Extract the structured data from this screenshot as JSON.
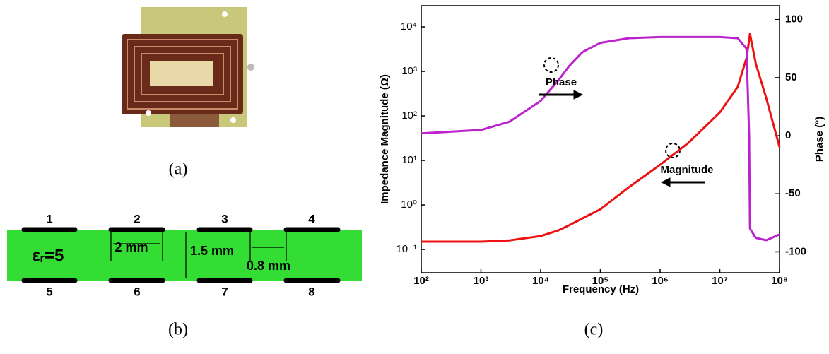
{
  "panel_a": {
    "caption": "(a)"
  },
  "panel_b": {
    "caption": "(b)",
    "top_labels": [
      "1",
      "2",
      "3",
      "4"
    ],
    "bottom_labels": [
      "5",
      "6",
      "7",
      "8"
    ],
    "permittivity": "εᵣ=5",
    "electrode_width": "2 mm",
    "thickness": "1.5 mm",
    "gap": "0.8 mm"
  },
  "panel_c": {
    "caption": "(c)"
  },
  "chart_data": {
    "type": "line",
    "x_label": "Frequency (Hz)",
    "y_label": "Impedance Magnitude (Ω)",
    "y2_label": "Phase (°)",
    "log_x": true,
    "log_y": true,
    "grid": false,
    "x": [
      100,
      1000,
      3000,
      10000,
      20000,
      30000,
      50000,
      100000,
      300000,
      1000000,
      3000000,
      10000000,
      20000000,
      28000000,
      31000000,
      32000000,
      40000000,
      60000000,
      100000000
    ],
    "series": [
      {
        "name": "Magnitude",
        "color": "#ee1111",
        "values": [
          0.15,
          0.15,
          0.16,
          0.2,
          0.27,
          0.35,
          0.5,
          0.8,
          2.5,
          8,
          25,
          120,
          450,
          2000,
          5000,
          7000,
          1500,
          250,
          20
        ]
      },
      {
        "name": "Phase",
        "color": "#bb22cc",
        "axis": "y2",
        "values": [
          2,
          5,
          12,
          30,
          48,
          60,
          72,
          80,
          84,
          85,
          85,
          85,
          84,
          75,
          0,
          -80,
          -88,
          -90,
          -85
        ]
      }
    ],
    "xlim": [
      100,
      100000000
    ],
    "xticks": [
      {
        "value": 100,
        "label": "10²"
      },
      {
        "value": 1000,
        "label": "10³"
      },
      {
        "value": 10000,
        "label": "10⁴"
      },
      {
        "value": 100000,
        "label": "10⁵"
      },
      {
        "value": 1000000,
        "label": "10⁶"
      },
      {
        "value": 10000000,
        "label": "10⁷"
      },
      {
        "value": 100000000,
        "label": "10⁸"
      }
    ],
    "ylim": [
      0.03,
      30000
    ],
    "yticks": [
      {
        "value": 0.1,
        "label": "10⁻¹"
      },
      {
        "value": 1,
        "label": "10⁰"
      },
      {
        "value": 10,
        "label": "10¹"
      },
      {
        "value": 100,
        "label": "10²"
      },
      {
        "value": 1000,
        "label": "10³"
      },
      {
        "value": 10000,
        "label": "10⁴"
      }
    ],
    "y2lim": [
      -118,
      112
    ],
    "y2ticks": [
      -100,
      -50,
      0,
      50,
      100
    ]
  }
}
